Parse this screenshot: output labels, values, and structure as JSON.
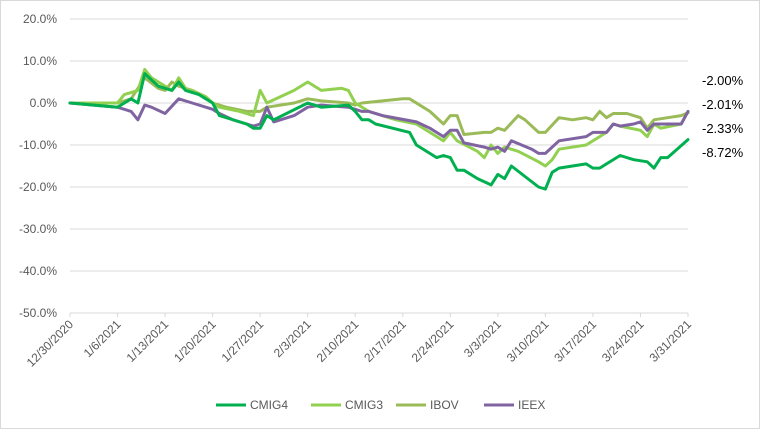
{
  "chart_data": {
    "type": "line",
    "title": "",
    "xlabel": "",
    "ylabel": "",
    "ylim": [
      -50,
      20
    ],
    "y_ticks": [
      "20.0%",
      "10.0%",
      "0.0%",
      "-10.0%",
      "-20.0%",
      "-30.0%",
      "-40.0%",
      "-50.0%"
    ],
    "y_tick_values": [
      20,
      10,
      0,
      -10,
      -20,
      -30,
      -40,
      -50
    ],
    "x_ticks": [
      "12/30/2020",
      "1/6/2021",
      "1/13/2021",
      "1/20/2021",
      "1/27/2021",
      "2/3/2021",
      "2/10/2021",
      "2/17/2021",
      "2/24/2021",
      "3/3/2021",
      "3/10/2021",
      "3/17/2021",
      "3/24/2021",
      "3/31/2021"
    ],
    "grid": true,
    "legend_position": "bottom",
    "end_labels": [
      "-2.00%",
      "-2.01%",
      "-2.33%",
      "-8.72%"
    ],
    "series": [
      {
        "name": "CMIG4",
        "color": "#00b050",
        "points": [
          [
            "12/30/2020",
            0
          ],
          [
            "1/6/2021",
            -1
          ],
          [
            "1/8/2021",
            1
          ],
          [
            "1/9/2021",
            0
          ],
          [
            "1/10/2021",
            7
          ],
          [
            "1/12/2021",
            4
          ],
          [
            "1/14/2021",
            3
          ],
          [
            "1/15/2021",
            5
          ],
          [
            "1/16/2021",
            3
          ],
          [
            "1/18/2021",
            2
          ],
          [
            "1/19/2021",
            1
          ],
          [
            "1/20/2021",
            0
          ],
          [
            "1/21/2021",
            -3
          ],
          [
            "1/25/2021",
            -5
          ],
          [
            "1/26/2021",
            -6
          ],
          [
            "1/27/2021",
            -6
          ],
          [
            "1/28/2021",
            -3
          ],
          [
            "1/29/2021",
            -4
          ],
          [
            "2/3/2021",
            0
          ],
          [
            "2/5/2021",
            -1
          ],
          [
            "2/9/2021",
            -0.5
          ],
          [
            "2/10/2021",
            -2
          ],
          [
            "2/11/2021",
            -4
          ],
          [
            "2/12/2021",
            -4
          ],
          [
            "2/13/2021",
            -5
          ],
          [
            "2/18/2021",
            -7
          ],
          [
            "2/19/2021",
            -10
          ],
          [
            "2/22/2021",
            -13
          ],
          [
            "2/23/2021",
            -12.5
          ],
          [
            "2/24/2021",
            -13
          ],
          [
            "2/25/2021",
            -16
          ],
          [
            "2/26/2021",
            -16
          ],
          [
            "2/28/2021",
            -18
          ],
          [
            "3/2/2021",
            -19.5
          ],
          [
            "3/3/2021",
            -17
          ],
          [
            "3/4/2021",
            -18
          ],
          [
            "3/5/2021",
            -15
          ],
          [
            "3/9/2021",
            -20
          ],
          [
            "3/10/2021",
            -20.5
          ],
          [
            "3/11/2021",
            -16.5
          ],
          [
            "3/12/2021",
            -15.5
          ],
          [
            "3/16/2021",
            -14.5
          ],
          [
            "3/17/2021",
            -15.5
          ],
          [
            "3/18/2021",
            -15.5
          ],
          [
            "3/19/2021",
            -14.5
          ],
          [
            "3/21/2021",
            -12.5
          ],
          [
            "3/23/2021",
            -13.5
          ],
          [
            "3/25/2021",
            -14
          ],
          [
            "3/26/2021",
            -15.5
          ],
          [
            "3/27/2021",
            -13
          ],
          [
            "3/28/2021",
            -13
          ],
          [
            "3/31/2021",
            -8.72
          ]
        ]
      },
      {
        "name": "CMIG3",
        "color": "#92d050",
        "points": [
          [
            "12/30/2020",
            0
          ],
          [
            "1/6/2021",
            0
          ],
          [
            "1/7/2021",
            2
          ],
          [
            "1/9/2021",
            3
          ],
          [
            "1/10/2021",
            8
          ],
          [
            "1/11/2021",
            6
          ],
          [
            "1/13/2021",
            4
          ],
          [
            "1/14/2021",
            3
          ],
          [
            "1/15/2021",
            6
          ],
          [
            "1/16/2021",
            3.5
          ],
          [
            "1/19/2021",
            1.5
          ],
          [
            "1/20/2021",
            0
          ],
          [
            "1/21/2021",
            -1
          ],
          [
            "1/24/2021",
            -2
          ],
          [
            "1/26/2021",
            -3
          ],
          [
            "1/27/2021",
            3
          ],
          [
            "1/28/2021",
            0
          ],
          [
            "2/1/2021",
            3
          ],
          [
            "2/3/2021",
            5
          ],
          [
            "2/5/2021",
            3
          ],
          [
            "2/8/2021",
            3.5
          ],
          [
            "2/9/2021",
            3
          ],
          [
            "2/10/2021",
            0
          ],
          [
            "2/12/2021",
            -2
          ],
          [
            "2/16/2021",
            -4
          ],
          [
            "2/19/2021",
            -5
          ],
          [
            "2/21/2021",
            -7
          ],
          [
            "2/23/2021",
            -9
          ],
          [
            "2/24/2021",
            -7
          ],
          [
            "2/25/2021",
            -9
          ],
          [
            "2/28/2021",
            -11.5
          ],
          [
            "3/1/2021",
            -13
          ],
          [
            "3/2/2021",
            -10
          ],
          [
            "3/3/2021",
            -12
          ],
          [
            "3/4/2021",
            -10.5
          ],
          [
            "3/6/2021",
            -11.5
          ],
          [
            "3/9/2021",
            -14
          ],
          [
            "3/10/2021",
            -15
          ],
          [
            "3/11/2021",
            -13.5
          ],
          [
            "3/12/2021",
            -11
          ],
          [
            "3/16/2021",
            -10
          ],
          [
            "3/18/2021",
            -8
          ],
          [
            "3/19/2021",
            -7
          ],
          [
            "3/20/2021",
            -5
          ],
          [
            "3/21/2021",
            -5.5
          ],
          [
            "3/24/2021",
            -6.5
          ],
          [
            "3/25/2021",
            -8
          ],
          [
            "3/26/2021",
            -5
          ],
          [
            "3/27/2021",
            -6
          ],
          [
            "3/30/2021",
            -5
          ],
          [
            "3/31/2021",
            -2
          ]
        ]
      },
      {
        "name": "IBOV",
        "color": "#9bbb59",
        "points": [
          [
            "12/30/2020",
            0
          ],
          [
            "1/6/2021",
            0
          ],
          [
            "1/8/2021",
            1
          ],
          [
            "1/10/2021",
            6
          ],
          [
            "1/12/2021",
            3.5
          ],
          [
            "1/13/2021",
            3
          ],
          [
            "1/14/2021",
            5
          ],
          [
            "1/15/2021",
            4
          ],
          [
            "1/17/2021",
            3
          ],
          [
            "1/19/2021",
            1.5
          ],
          [
            "1/20/2021",
            0
          ],
          [
            "1/22/2021",
            -1
          ],
          [
            "1/25/2021",
            -2
          ],
          [
            "1/27/2021",
            -2
          ],
          [
            "1/28/2021",
            -1
          ],
          [
            "2/1/2021",
            0
          ],
          [
            "2/3/2021",
            1
          ],
          [
            "2/5/2021",
            0.5
          ],
          [
            "2/9/2021",
            0
          ],
          [
            "2/10/2021",
            -0.5
          ],
          [
            "2/11/2021",
            0
          ],
          [
            "2/14/2021",
            0.5
          ],
          [
            "2/17/2021",
            1
          ],
          [
            "2/18/2021",
            1
          ],
          [
            "2/21/2021",
            -2
          ],
          [
            "2/23/2021",
            -5
          ],
          [
            "2/24/2021",
            -3
          ],
          [
            "2/25/2021",
            -3
          ],
          [
            "2/26/2021",
            -7.5
          ],
          [
            "3/1/2021",
            -7
          ],
          [
            "3/2/2021",
            -7
          ],
          [
            "3/3/2021",
            -6
          ],
          [
            "3/4/2021",
            -6.5
          ],
          [
            "3/6/2021",
            -3
          ],
          [
            "3/7/2021",
            -4
          ],
          [
            "3/9/2021",
            -7
          ],
          [
            "3/10/2021",
            -7
          ],
          [
            "3/12/2021",
            -3.5
          ],
          [
            "3/14/2021",
            -4
          ],
          [
            "3/16/2021",
            -3.5
          ],
          [
            "3/17/2021",
            -4
          ],
          [
            "3/18/2021",
            -2
          ],
          [
            "3/19/2021",
            -3.5
          ],
          [
            "3/20/2021",
            -2.5
          ],
          [
            "3/22/2021",
            -2.5
          ],
          [
            "3/24/2021",
            -3.5
          ],
          [
            "3/25/2021",
            -6
          ],
          [
            "3/26/2021",
            -4
          ],
          [
            "3/28/2021",
            -3.5
          ],
          [
            "3/30/2021",
            -3
          ],
          [
            "3/31/2021",
            -2.33
          ]
        ]
      },
      {
        "name": "IEEX",
        "color": "#8064a2",
        "points": [
          [
            "12/30/2020",
            0
          ],
          [
            "1/6/2021",
            -1
          ],
          [
            "1/8/2021",
            -2
          ],
          [
            "1/9/2021",
            -4
          ],
          [
            "1/10/2021",
            -0.5
          ],
          [
            "1/11/2021",
            -1
          ],
          [
            "1/13/2021",
            -2.5
          ],
          [
            "1/15/2021",
            1
          ],
          [
            "1/17/2021",
            0
          ],
          [
            "1/19/2021",
            -1
          ],
          [
            "1/20/2021",
            -1.5
          ],
          [
            "1/21/2021",
            -2.5
          ],
          [
            "1/23/2021",
            -4
          ],
          [
            "1/25/2021",
            -5
          ],
          [
            "1/26/2021",
            -5.5
          ],
          [
            "1/27/2021",
            -5
          ],
          [
            "1/28/2021",
            -1
          ],
          [
            "1/29/2021",
            -4.5
          ],
          [
            "2/1/2021",
            -3
          ],
          [
            "2/3/2021",
            -1
          ],
          [
            "2/5/2021",
            -0.5
          ],
          [
            "2/9/2021",
            -1
          ],
          [
            "2/10/2021",
            -1.5
          ],
          [
            "2/11/2021",
            -2
          ],
          [
            "2/12/2021",
            -2
          ],
          [
            "2/14/2021",
            -3
          ],
          [
            "2/19/2021",
            -4.5
          ],
          [
            "2/21/2021",
            -6
          ],
          [
            "2/23/2021",
            -8
          ],
          [
            "2/24/2021",
            -6.5
          ],
          [
            "2/25/2021",
            -6.5
          ],
          [
            "2/26/2021",
            -9.5
          ],
          [
            "3/1/2021",
            -10.5
          ],
          [
            "3/2/2021",
            -11
          ],
          [
            "3/3/2021",
            -10.5
          ],
          [
            "3/4/2021",
            -11.5
          ],
          [
            "3/5/2021",
            -9
          ],
          [
            "3/8/2021",
            -11
          ],
          [
            "3/9/2021",
            -12
          ],
          [
            "3/10/2021",
            -12
          ],
          [
            "3/12/2021",
            -9
          ],
          [
            "3/16/2021",
            -8
          ],
          [
            "3/17/2021",
            -7
          ],
          [
            "3/19/2021",
            -7
          ],
          [
            "3/20/2021",
            -5
          ],
          [
            "3/21/2021",
            -5.5
          ],
          [
            "3/23/2021",
            -5
          ],
          [
            "3/24/2021",
            -4.5
          ],
          [
            "3/25/2021",
            -6.5
          ],
          [
            "3/26/2021",
            -5
          ],
          [
            "3/29/2021",
            -5
          ],
          [
            "3/30/2021",
            -5
          ],
          [
            "3/31/2021",
            -2.01
          ]
        ]
      }
    ]
  }
}
